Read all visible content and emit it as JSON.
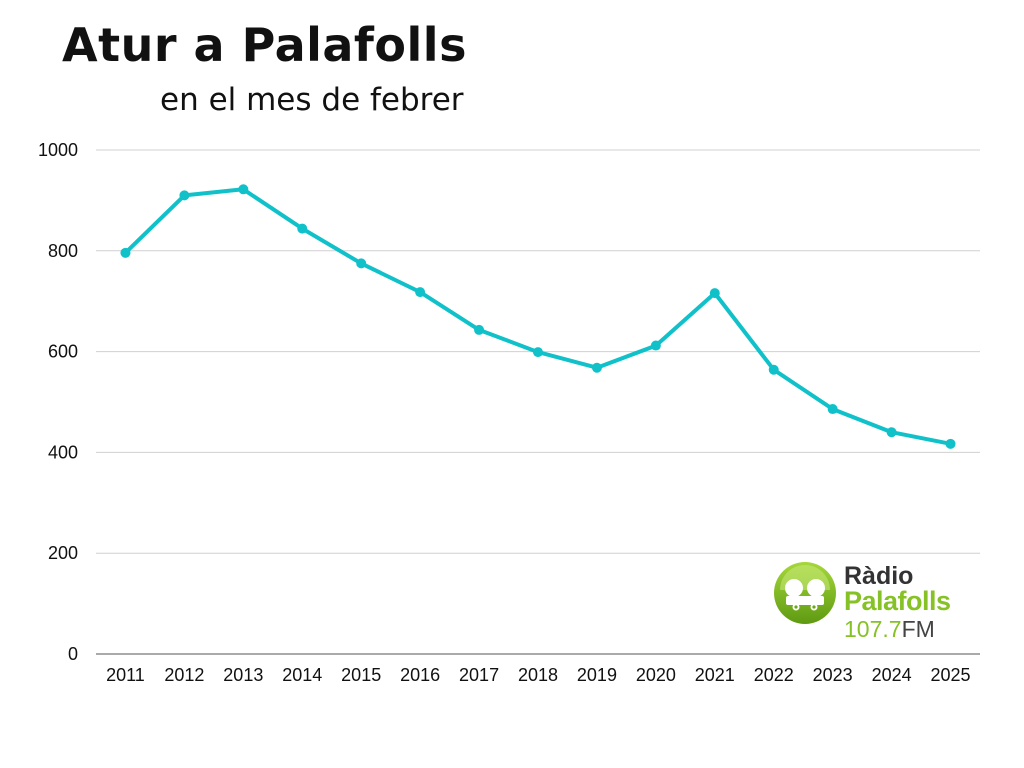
{
  "title": "Atur a Palafolls",
  "subtitle": "en el mes de febrer",
  "logo": {
    "line1": "Ràdio",
    "line2": "Palafolls",
    "freq": "107.7",
    "band": "FM"
  },
  "colors": {
    "line": "#11c1c9",
    "grid": "#d0d0d0",
    "axis": "#555555",
    "logo_green": "#86c226"
  },
  "chart_data": {
    "type": "line",
    "title": "Atur a Palafolls",
    "subtitle": "en el mes de febrer",
    "x": [
      "2011",
      "2012",
      "2013",
      "2014",
      "2015",
      "2016",
      "2017",
      "2018",
      "2019",
      "2020",
      "2021",
      "2022",
      "2023",
      "2024",
      "2025"
    ],
    "series": [
      {
        "values": [
          796,
          910,
          922,
          844,
          775,
          718,
          643,
          599,
          568,
          612,
          716,
          564,
          486,
          440,
          417
        ]
      }
    ],
    "ylim": [
      0,
      1000
    ],
    "yticks": [
      "0",
      "200",
      "400",
      "600",
      "800",
      "1000"
    ],
    "grid": true,
    "legend": "none"
  }
}
